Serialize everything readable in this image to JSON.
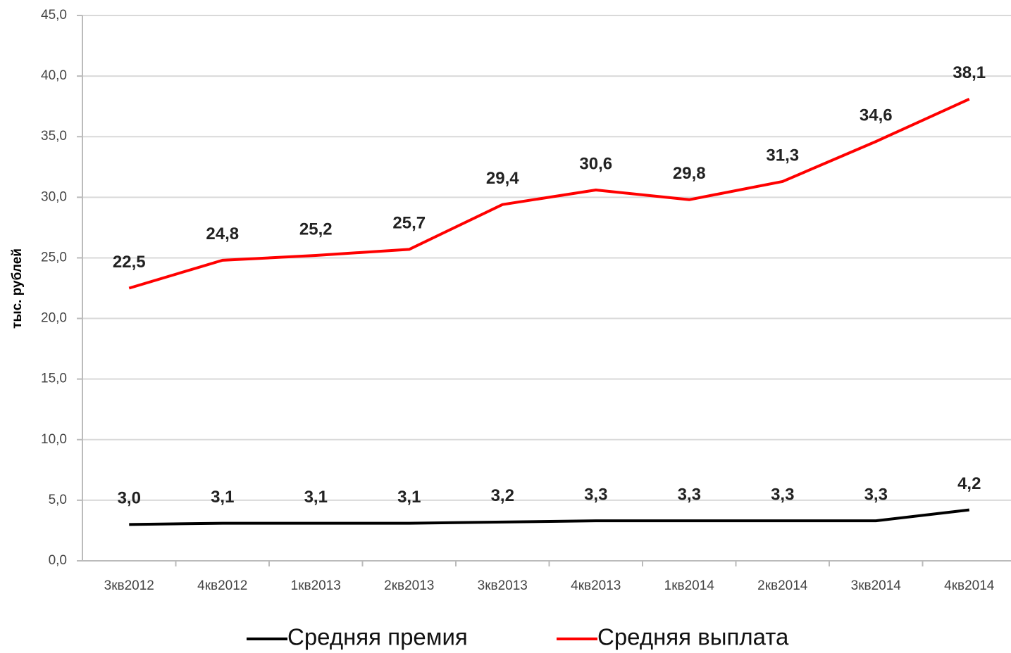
{
  "chart_data": {
    "type": "line",
    "y_label": "тыс. рублей",
    "categories": [
      "3кв2012",
      "4кв2012",
      "1кв2013",
      "2кв2013",
      "3кв2013",
      "4кв2013",
      "1кв2014",
      "2кв2014",
      "3кв2014",
      "4кв2014"
    ],
    "series": [
      {
        "name": "Средняя премия",
        "color": "#000000",
        "values": [
          3.0,
          3.1,
          3.1,
          3.1,
          3.2,
          3.3,
          3.3,
          3.3,
          3.3,
          4.2
        ],
        "value_labels": [
          "3,0",
          "3,1",
          "3,1",
          "3,1",
          "3,2",
          "3,3",
          "3,3",
          "3,3",
          "3,3",
          "4,2"
        ]
      },
      {
        "name": "Средняя выплата",
        "color": "#ff0000",
        "values": [
          22.5,
          24.8,
          25.2,
          25.7,
          29.4,
          30.6,
          29.8,
          31.3,
          34.6,
          38.1
        ],
        "value_labels": [
          "22,5",
          "24,8",
          "25,2",
          "25,7",
          "29,4",
          "30,6",
          "29,8",
          "31,3",
          "34,6",
          "38,1"
        ]
      }
    ],
    "ylim": [
      0,
      45
    ],
    "yticks": [
      {
        "value": 0,
        "label": "0,0"
      },
      {
        "value": 5,
        "label": "5,0"
      },
      {
        "value": 10,
        "label": "10,0"
      },
      {
        "value": 15,
        "label": "15,0"
      },
      {
        "value": 20,
        "label": "20,0"
      },
      {
        "value": 25,
        "label": "25,0"
      },
      {
        "value": 30,
        "label": "30,0"
      },
      {
        "value": 35,
        "label": "35,0"
      },
      {
        "value": 40,
        "label": "40,0"
      },
      {
        "value": 45,
        "label": "45,0"
      }
    ],
    "grid": true,
    "legend": "bottom"
  }
}
